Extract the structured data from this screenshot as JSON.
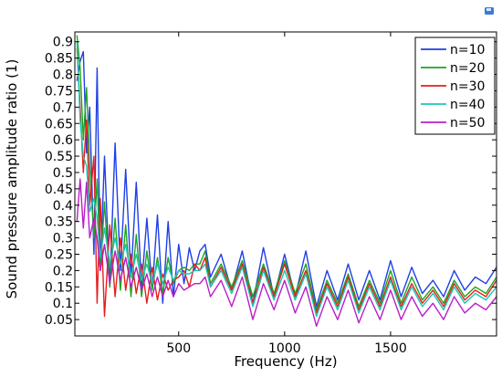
{
  "chart_data": {
    "type": "line",
    "title": "",
    "xlabel": "Frequency (Hz)",
    "ylabel": "Sound pressure amplitude ratio (1)",
    "xlim": [
      10,
      2000
    ],
    "ylim": [
      0,
      0.93
    ],
    "x_ticks": [
      500,
      1000,
      1500
    ],
    "y_ticks": [
      0.05,
      0.1,
      0.15,
      0.2,
      0.25,
      0.3,
      0.35,
      0.4,
      0.45,
      0.5,
      0.55,
      0.6,
      0.65,
      0.7,
      0.75,
      0.8,
      0.85,
      0.9
    ],
    "grid": false,
    "legend_position": "top-right",
    "x": [
      20,
      35,
      50,
      65,
      80,
      100,
      115,
      130,
      150,
      175,
      200,
      225,
      250,
      275,
      300,
      325,
      350,
      375,
      400,
      425,
      450,
      475,
      500,
      525,
      550,
      575,
      600,
      625,
      650,
      700,
      750,
      800,
      850,
      900,
      950,
      1000,
      1050,
      1100,
      1150,
      1200,
      1250,
      1300,
      1350,
      1400,
      1450,
      1500,
      1550,
      1600,
      1650,
      1700,
      1750,
      1800,
      1850,
      1900,
      1950,
      2000
    ],
    "series": [
      {
        "name": "n=10",
        "color": "#1f3fe6",
        "values": [
          0.78,
          0.84,
          0.87,
          0.56,
          0.7,
          0.25,
          0.82,
          0.2,
          0.55,
          0.15,
          0.59,
          0.2,
          0.51,
          0.18,
          0.47,
          0.15,
          0.36,
          0.14,
          0.37,
          0.1,
          0.35,
          0.12,
          0.28,
          0.16,
          0.27,
          0.2,
          0.26,
          0.28,
          0.18,
          0.25,
          0.14,
          0.26,
          0.1,
          0.27,
          0.12,
          0.25,
          0.12,
          0.26,
          0.09,
          0.2,
          0.11,
          0.22,
          0.11,
          0.2,
          0.11,
          0.23,
          0.12,
          0.21,
          0.13,
          0.17,
          0.12,
          0.2,
          0.14,
          0.18,
          0.16,
          0.21
        ]
      },
      {
        "name": "n=20",
        "color": "#1ea51e",
        "values": [
          0.92,
          0.82,
          0.6,
          0.76,
          0.52,
          0.3,
          0.48,
          0.2,
          0.41,
          0.15,
          0.36,
          0.14,
          0.34,
          0.12,
          0.31,
          0.12,
          0.26,
          0.14,
          0.24,
          0.13,
          0.24,
          0.16,
          0.2,
          0.21,
          0.2,
          0.22,
          0.22,
          0.26,
          0.16,
          0.22,
          0.15,
          0.23,
          0.12,
          0.22,
          0.13,
          0.23,
          0.13,
          0.22,
          0.08,
          0.17,
          0.1,
          0.19,
          0.09,
          0.17,
          0.1,
          0.2,
          0.1,
          0.18,
          0.11,
          0.15,
          0.1,
          0.17,
          0.12,
          0.15,
          0.13,
          0.18
        ]
      },
      {
        "name": "n=30",
        "color": "#e61e1e",
        "values": [
          0.88,
          0.7,
          0.5,
          0.66,
          0.4,
          0.55,
          0.1,
          0.42,
          0.06,
          0.34,
          0.12,
          0.3,
          0.14,
          0.25,
          0.13,
          0.22,
          0.1,
          0.21,
          0.11,
          0.19,
          0.14,
          0.17,
          0.18,
          0.2,
          0.15,
          0.22,
          0.2,
          0.24,
          0.15,
          0.21,
          0.14,
          0.22,
          0.1,
          0.21,
          0.12,
          0.22,
          0.12,
          0.2,
          0.07,
          0.16,
          0.09,
          0.18,
          0.08,
          0.16,
          0.09,
          0.18,
          0.09,
          0.16,
          0.1,
          0.14,
          0.09,
          0.16,
          0.11,
          0.14,
          0.12,
          0.17
        ]
      },
      {
        "name": "n=40",
        "color": "#19c8b4",
        "values": [
          0.9,
          0.66,
          0.55,
          0.52,
          0.38,
          0.42,
          0.36,
          0.24,
          0.33,
          0.22,
          0.3,
          0.22,
          0.28,
          0.18,
          0.25,
          0.17,
          0.22,
          0.16,
          0.22,
          0.16,
          0.21,
          0.17,
          0.2,
          0.19,
          0.19,
          0.2,
          0.2,
          0.22,
          0.15,
          0.2,
          0.13,
          0.21,
          0.09,
          0.2,
          0.11,
          0.2,
          0.11,
          0.19,
          0.06,
          0.15,
          0.08,
          0.17,
          0.07,
          0.15,
          0.08,
          0.17,
          0.08,
          0.15,
          0.09,
          0.13,
          0.08,
          0.15,
          0.1,
          0.13,
          0.11,
          0.15
        ]
      },
      {
        "name": "n=50",
        "color": "#b91ec8",
        "values": [
          0.35,
          0.48,
          0.33,
          0.47,
          0.3,
          0.36,
          0.3,
          0.2,
          0.28,
          0.16,
          0.26,
          0.17,
          0.24,
          0.15,
          0.21,
          0.14,
          0.19,
          0.12,
          0.18,
          0.12,
          0.17,
          0.12,
          0.16,
          0.14,
          0.15,
          0.16,
          0.16,
          0.18,
          0.12,
          0.17,
          0.09,
          0.18,
          0.05,
          0.16,
          0.08,
          0.17,
          0.07,
          0.15,
          0.03,
          0.12,
          0.05,
          0.14,
          0.04,
          0.12,
          0.05,
          0.14,
          0.05,
          0.12,
          0.06,
          0.1,
          0.05,
          0.12,
          0.07,
          0.1,
          0.08,
          0.12
        ]
      }
    ]
  },
  "colors": {
    "frame": "#000000",
    "background": "#ffffff",
    "corner_icon": "#3a7bd5"
  }
}
